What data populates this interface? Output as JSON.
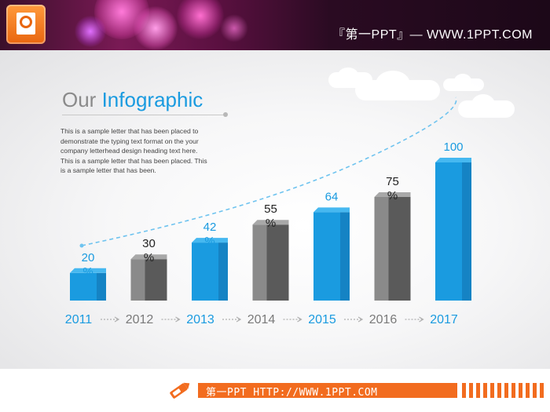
{
  "header": {
    "title": "『第一PPT』— WWW.1PPT.COM"
  },
  "slide": {
    "title_part1": "Our ",
    "title_part2": "Infographic",
    "description": "This is a sample letter that has been placed to demonstrate the typing text format on the your company letterhead design heading text here. This is a sample letter that has been placed. This is a sample letter that has been."
  },
  "chart_data": {
    "type": "bar",
    "categories": [
      "2011",
      "2012",
      "2013",
      "2014",
      "2015",
      "2016",
      "2017"
    ],
    "values": [
      20,
      30,
      42,
      55,
      64,
      75,
      100
    ],
    "value_labels": [
      "20\n%",
      "30\n%",
      "42\n%",
      "55\n%",
      "64",
      "75\n%",
      "100"
    ],
    "bar_colors": [
      "blue",
      "gray",
      "blue",
      "gray",
      "blue",
      "gray",
      "blue"
    ],
    "trend_line": "dashed, increasing",
    "colors": {
      "blue": "#1a9be0",
      "gray": "#5a5a5a",
      "year_blue": "#1a9be0",
      "year_gray": "#7a7a7a"
    }
  },
  "footer": {
    "text": "第一PPT HTTP://WWW.1PPT.COM"
  },
  "icons": {
    "logo": "powerpoint-logo-icon",
    "footer": "pencil-icon"
  }
}
